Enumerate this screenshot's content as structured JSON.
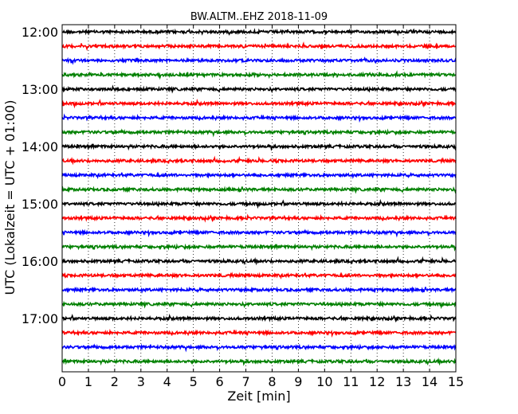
{
  "chart_data": {
    "type": "line",
    "title": "BW.ALTM..EHZ 2018-11-09",
    "xlabel": "Zeit  [min]",
    "ylabel": "UTC (Lokalzeit = UTC + 01:00)",
    "xlim": [
      0,
      15
    ],
    "x_ticks": [
      "0",
      "1",
      "2",
      "3",
      "4",
      "5",
      "6",
      "7",
      "8",
      "9",
      "10",
      "11",
      "12",
      "13",
      "14",
      "15"
    ],
    "y_ticks": [
      "12:00",
      "13:00",
      "14:00",
      "15:00",
      "16:00",
      "17:00"
    ],
    "grid": "vertical dotted",
    "trace_color_cycle": [
      "#000000",
      "#ff0000",
      "#0000ff",
      "#008000"
    ],
    "traces": [
      {
        "start": "12:00",
        "color": "#000000"
      },
      {
        "start": "12:15",
        "color": "#ff0000"
      },
      {
        "start": "12:30",
        "color": "#0000ff"
      },
      {
        "start": "12:45",
        "color": "#008000"
      },
      {
        "start": "13:00",
        "color": "#000000"
      },
      {
        "start": "13:15",
        "color": "#ff0000"
      },
      {
        "start": "13:30",
        "color": "#0000ff"
      },
      {
        "start": "13:45",
        "color": "#008000"
      },
      {
        "start": "14:00",
        "color": "#000000"
      },
      {
        "start": "14:15",
        "color": "#ff0000"
      },
      {
        "start": "14:30",
        "color": "#0000ff"
      },
      {
        "start": "14:45",
        "color": "#008000"
      },
      {
        "start": "15:00",
        "color": "#000000"
      },
      {
        "start": "15:15",
        "color": "#ff0000"
      },
      {
        "start": "15:30",
        "color": "#0000ff"
      },
      {
        "start": "15:45",
        "color": "#008000"
      },
      {
        "start": "16:00",
        "color": "#000000"
      },
      {
        "start": "16:15",
        "color": "#ff0000"
      },
      {
        "start": "16:30",
        "color": "#0000ff"
      },
      {
        "start": "16:45",
        "color": "#008000"
      },
      {
        "start": "17:00",
        "color": "#000000"
      },
      {
        "start": "17:15",
        "color": "#ff0000"
      },
      {
        "start": "17:30",
        "color": "#0000ff"
      },
      {
        "start": "17:45",
        "color": "#008000"
      }
    ]
  }
}
